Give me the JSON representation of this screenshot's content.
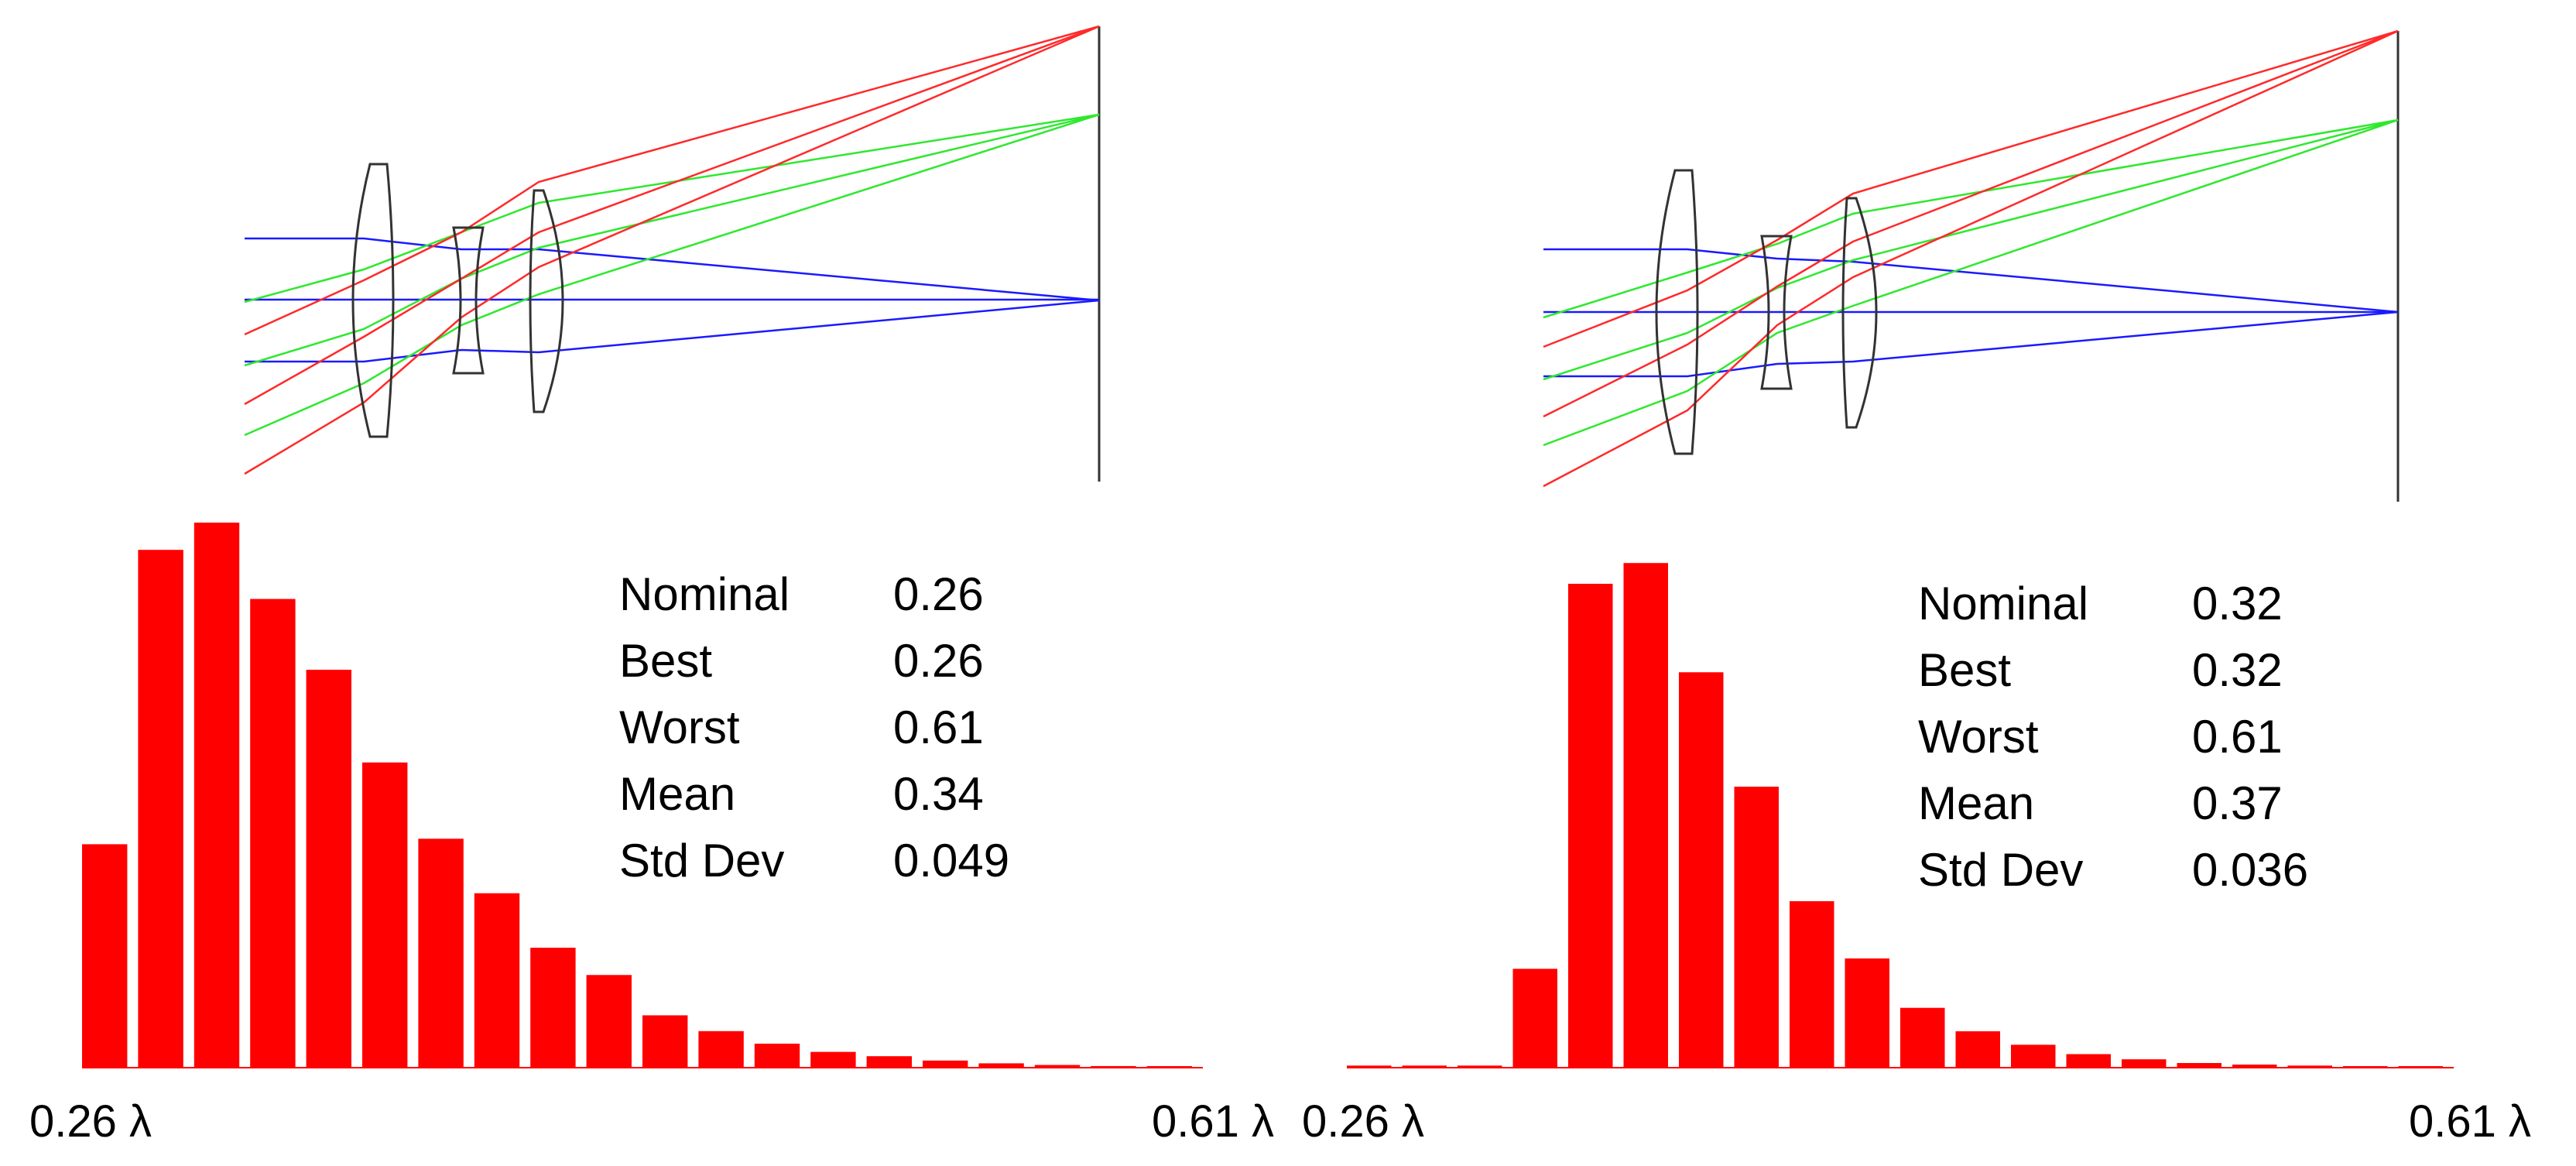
{
  "colors": {
    "bar": "#ff0000",
    "ray_red": "#ff2a2a",
    "ray_green": "#2ee82e",
    "ray_blue": "#1a1aff",
    "lens": "#333333"
  },
  "panels": [
    {
      "stats": [
        {
          "label": "Nominal",
          "value": "0.26"
        },
        {
          "label": "Best",
          "value": "0.26"
        },
        {
          "label": "Worst",
          "value": "0.61"
        },
        {
          "label": "Mean",
          "value": "0.34"
        },
        {
          "label": "Std Dev",
          "value": "0.049"
        }
      ],
      "xmin_label": "0.26 λ",
      "xmax_label": "0.61 λ"
    },
    {
      "stats": [
        {
          "label": "Nominal",
          "value": "0.32"
        },
        {
          "label": "Best",
          "value": "0.32"
        },
        {
          "label": "Worst",
          "value": "0.61"
        },
        {
          "label": "Mean",
          "value": "0.37"
        },
        {
          "label": "Std Dev",
          "value": "0.036"
        }
      ],
      "xmin_label": "0.26 λ",
      "xmax_label": "0.61 λ"
    }
  ],
  "chart_data": [
    {
      "type": "bar",
      "x_range": [
        0.26,
        0.61
      ],
      "values": [
        0.41,
        0.95,
        1.0,
        0.86,
        0.73,
        0.56,
        0.42,
        0.32,
        0.22,
        0.17,
        0.096,
        0.067,
        0.044,
        0.029,
        0.021,
        0.013,
        0.008,
        0.005,
        0.003,
        0.002
      ]
    },
    {
      "type": "bar",
      "x_range": [
        0.26,
        0.61
      ],
      "values": [
        0.004,
        0.004,
        0.004,
        0.19,
        0.93,
        0.97,
        0.76,
        0.54,
        0.32,
        0.21,
        0.115,
        0.07,
        0.044,
        0.026,
        0.016,
        0.009,
        0.006,
        0.004,
        0.003,
        0.002
      ]
    }
  ]
}
